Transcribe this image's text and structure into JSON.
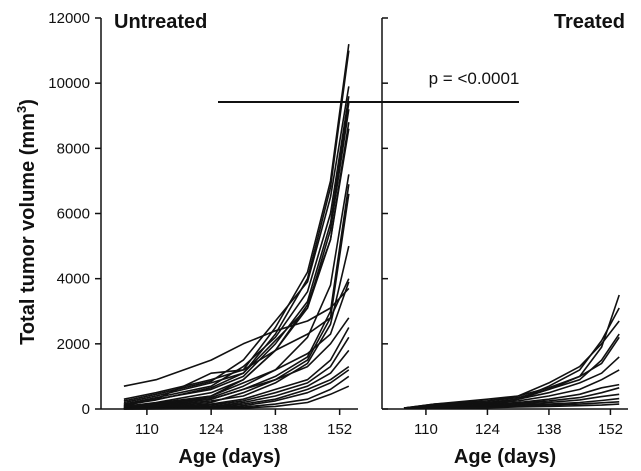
{
  "chart_data": {
    "type": "line",
    "ylabel": "Total tumor volume (mm",
    "ylabel_superscript": "3",
    "ylabel_close": ")",
    "ylim": [
      0,
      12000
    ],
    "yticks": [
      0,
      2000,
      4000,
      6000,
      8000,
      10000,
      12000
    ],
    "xticks": [
      110,
      124,
      138,
      152
    ],
    "xlim": [
      100,
      156
    ],
    "annotation": "p = <0.0001",
    "significance_bar": [
      126,
      177
    ],
    "panels": [
      {
        "title": "Untreated",
        "xlabel": "Age (days)",
        "x": [
          105,
          112,
          124,
          131,
          138,
          145,
          150,
          154
        ],
        "series": [
          {
            "values": [
              300,
              500,
              900,
              1200,
              2500,
              4200,
              7000,
              11200
            ]
          },
          {
            "values": [
              200,
              400,
              800,
              1100,
              2300,
              4000,
              6800,
              11000
            ]
          },
          {
            "values": [
              250,
              450,
              850,
              1500,
              2700,
              3900,
              6500,
              9900
            ]
          },
          {
            "values": [
              150,
              350,
              700,
              1300,
              2200,
              3600,
              6000,
              9600
            ]
          },
          {
            "values": [
              100,
              300,
              600,
              1000,
              2000,
              3300,
              5700,
              9400
            ]
          },
          {
            "values": [
              120,
              280,
              650,
              1100,
              2100,
              3100,
              5500,
              9200
            ]
          },
          {
            "values": [
              80,
              200,
              500,
              900,
              1800,
              3100,
              5200,
              8800
            ]
          },
          {
            "values": [
              60,
              180,
              400,
              900,
              1800,
              3200,
              5200,
              8600
            ]
          },
          {
            "values": [
              50,
              150,
              350,
              700,
              1200,
              2200,
              3800,
              7200
            ]
          },
          {
            "values": [
              40,
              120,
              300,
              600,
              1000,
              1600,
              3000,
              6900
            ]
          },
          {
            "values": [
              700,
              900,
              1500,
              2000,
              2400,
              2700,
              3100,
              3700
            ]
          },
          {
            "values": [
              100,
              150,
              300,
              600,
              900,
              1500,
              2800,
              6600
            ]
          },
          {
            "values": [
              30,
              100,
              250,
              400,
              800,
              1400,
              2600,
              5000
            ]
          },
          {
            "values": [
              150,
              300,
              1100,
              1200,
              1800,
              2300,
              2800,
              4000
            ]
          },
          {
            "values": [
              80,
              150,
              400,
              800,
              1200,
              1700,
              2300,
              3900
            ]
          },
          {
            "values": [
              30,
              80,
              200,
              500,
              900,
              1300,
              2000,
              2800
            ]
          },
          {
            "values": [
              20,
              60,
              150,
              300,
              600,
              900,
              1500,
              2500
            ]
          },
          {
            "values": [
              10,
              40,
              120,
              250,
              500,
              800,
              1300,
              2200
            ]
          },
          {
            "values": [
              5,
              30,
              80,
              200,
              400,
              700,
              1100,
              1800
            ]
          },
          {
            "values": [
              5,
              20,
              60,
              150,
              300,
              600,
              900,
              1300
            ]
          },
          {
            "values": [
              0,
              10,
              40,
              100,
              250,
              500,
              800,
              1200
            ]
          },
          {
            "values": [
              0,
              5,
              20,
              60,
              150,
              300,
              600,
              1000
            ]
          },
          {
            "values": [
              0,
              5,
              10,
              30,
              80,
              200,
              450,
              700
            ]
          }
        ]
      },
      {
        "title": "Treated",
        "xlabel": "Age (days)",
        "x": [
          105,
          112,
          124,
          131,
          138,
          145,
          150,
          154
        ],
        "series": [
          {
            "values": [
              30,
              100,
              200,
              300,
              600,
              1000,
              1900,
              3500
            ]
          },
          {
            "values": [
              30,
              100,
              200,
              300,
              700,
              1200,
              2100,
              3100
            ]
          },
          {
            "values": [
              30,
              150,
              250,
              400,
              800,
              1300,
              2000,
              2700
            ]
          },
          {
            "values": [
              30,
              120,
              250,
              350,
              600,
              900,
              1500,
              2300
            ]
          },
          {
            "values": [
              30,
              150,
              300,
              400,
              650,
              1000,
              1400,
              2200
            ]
          },
          {
            "values": [
              30,
              100,
              200,
              300,
              500,
              800,
              1100,
              1600
            ]
          },
          {
            "values": [
              30,
              80,
              180,
              250,
              400,
              600,
              900,
              1200
            ]
          },
          {
            "values": [
              30,
              80,
              150,
              200,
              300,
              450,
              650,
              750
            ]
          },
          {
            "values": [
              30,
              60,
              120,
              180,
              250,
              350,
              500,
              650
            ]
          },
          {
            "values": [
              30,
              50,
              100,
              150,
              200,
              280,
              380,
              450
            ]
          },
          {
            "values": [
              30,
              40,
              80,
              120,
              150,
              200,
              260,
              320
            ]
          },
          {
            "values": [
              30,
              30,
              60,
              90,
              120,
              150,
              190,
              220
            ]
          },
          {
            "values": [
              30,
              30,
              40,
              60,
              80,
              100,
              120,
              150
            ]
          }
        ]
      }
    ]
  }
}
